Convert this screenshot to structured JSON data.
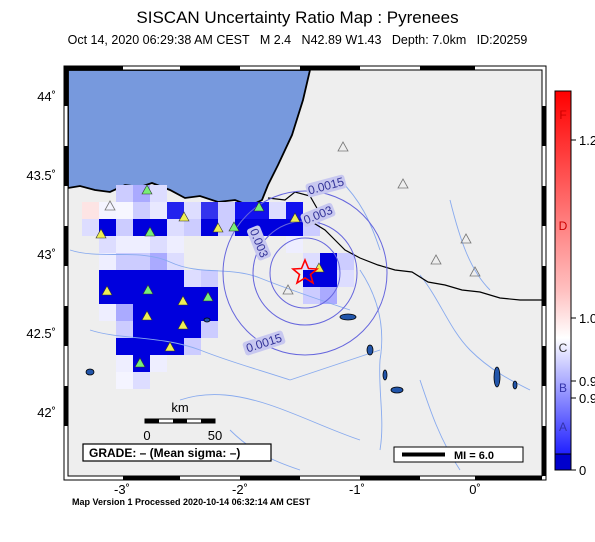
{
  "title": "SISCAN Uncertainty Ratio Map : Pyrenees",
  "subtitle": {
    "date": "Oct 14, 2020 06:29:38 AM CEST",
    "magnitude": "M 2.4",
    "location": "N42.89 W1.43",
    "depth": "Depth: 7.0km",
    "id": "ID:20259"
  },
  "axes": {
    "lat_ticks": [
      "44˚",
      "43.5˚",
      "43˚",
      "42.5˚",
      "42˚"
    ],
    "lon_ticks": [
      "-3˚",
      "-2˚",
      "-1˚",
      "0˚"
    ]
  },
  "contours": [
    "0.0015",
    "0.003",
    "0.003",
    "0.0015"
  ],
  "scale_bar": {
    "unit": "km",
    "zero": "0",
    "end": "50"
  },
  "grade_text": "GRADE: – (Mean sigma: –)",
  "mi_legend": "MI = 6.0",
  "colorbar": {
    "letters": [
      "F",
      "D",
      "C",
      "B",
      "A"
    ],
    "values": [
      "1.2",
      "1.0",
      "0.9",
      "0.9",
      "0"
    ],
    "top_color": "#ff0000",
    "mid_color": "#ffffff",
    "bottom_color": "#0000ff"
  },
  "colors": {
    "ocean": "#7799dd",
    "land": "#eeeeee",
    "river": "#88aaee",
    "epicenter": "#ff0000",
    "station_used": "#77ee77",
    "station_high": "#eeee55"
  },
  "footer": "Map Version 1 Processed 2020-10-14 06:32:14 AM CEST"
}
